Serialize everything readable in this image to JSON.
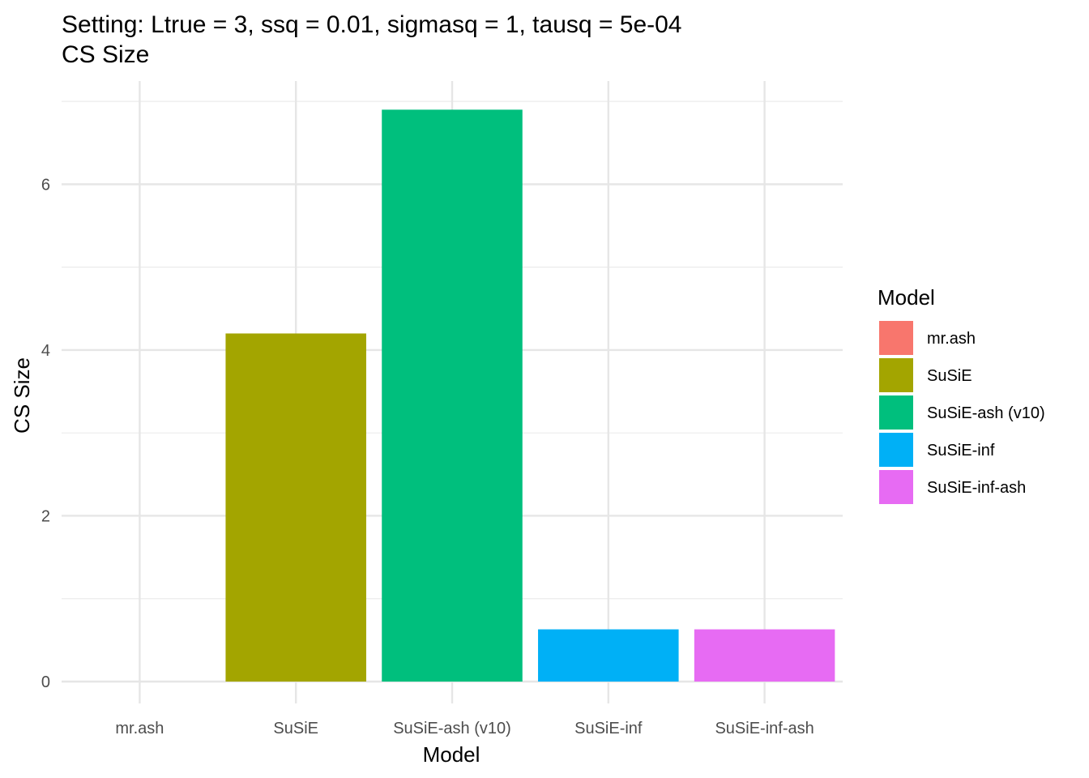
{
  "title_line1": "Setting: Ltrue = 3, ssq = 0.01, sigmasq = 1, tausq = 5e-04",
  "title_line2": "CS Size",
  "chart_data": {
    "type": "bar",
    "categories": [
      "mr.ash",
      "SuSiE",
      "SuSiE-ash (v10)",
      "SuSiE-inf",
      "SuSiE-inf-ash"
    ],
    "values": [
      0,
      4.2,
      6.9,
      0.63,
      0.63
    ],
    "colors": [
      "#F8766D",
      "#A3A500",
      "#00BF7D",
      "#00B0F6",
      "#E76BF3"
    ],
    "xlabel": "Model",
    "ylabel": "CS Size",
    "ylim": [
      0,
      7.05
    ],
    "yticks": [
      0,
      2,
      4,
      6
    ],
    "grid": true,
    "legend": {
      "title": "Model",
      "placement": "right",
      "entries": [
        "mr.ash",
        "SuSiE",
        "SuSiE-ash (v10)",
        "SuSiE-inf",
        "SuSiE-inf-ash"
      ]
    }
  }
}
